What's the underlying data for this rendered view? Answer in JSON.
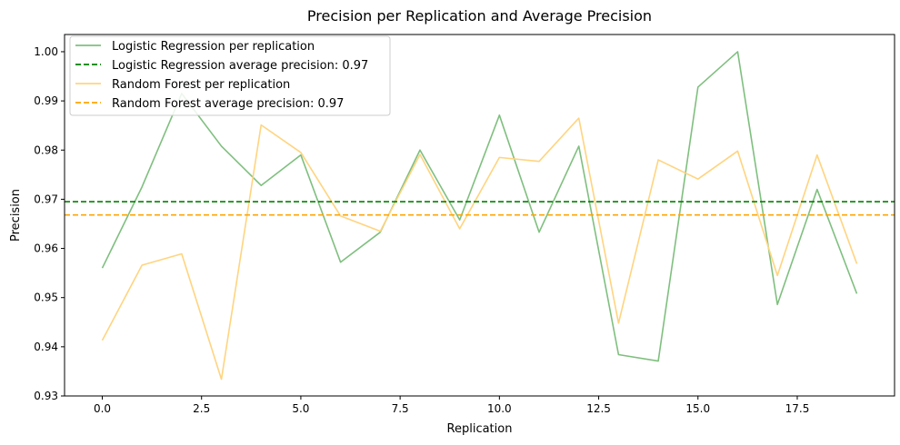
{
  "chart_data": {
    "type": "line",
    "title": "Precision per Replication and Average Precision",
    "xlabel": "Replication",
    "ylabel": "Precision",
    "xlim": [
      -0.95,
      19.95
    ],
    "ylim": [
      0.93,
      1.0035
    ],
    "xticks": [
      0.0,
      2.5,
      5.0,
      7.5,
      10.0,
      12.5,
      15.0,
      17.5
    ],
    "xtick_labels": [
      "0.0",
      "2.5",
      "5.0",
      "7.5",
      "10.0",
      "12.5",
      "15.0",
      "17.5"
    ],
    "yticks": [
      0.93,
      0.94,
      0.95,
      0.96,
      0.97,
      0.98,
      0.99,
      1.0
    ],
    "ytick_labels": [
      "0.93",
      "0.94",
      "0.95",
      "0.96",
      "0.97",
      "0.98",
      "0.99",
      "1.00"
    ],
    "grid": false,
    "legend_position": "top-left",
    "x": [
      0,
      1,
      2,
      3,
      4,
      5,
      6,
      7,
      8,
      9,
      10,
      11,
      12,
      13,
      14,
      15,
      16,
      17,
      18,
      19
    ],
    "series": [
      {
        "name": "Logistic Regression per replication",
        "color": "#7fbf7f",
        "style": "solid",
        "values": [
          0.956,
          0.9725,
          0.9915,
          0.9808,
          0.9728,
          0.979,
          0.9572,
          0.9633,
          0.98,
          0.9658,
          0.9871,
          0.9633,
          0.9808,
          0.9384,
          0.9371,
          0.9928,
          1.0,
          0.9486,
          0.972,
          0.9508
        ]
      },
      {
        "name": "Random Forest per replication",
        "color": "#ffd47f",
        "style": "solid",
        "values": [
          0.9413,
          0.9566,
          0.9589,
          0.9334,
          0.9851,
          0.9795,
          0.9666,
          0.9635,
          0.9791,
          0.964,
          0.9785,
          0.9777,
          0.9865,
          0.9448,
          0.978,
          0.9741,
          0.9798,
          0.9545,
          0.979,
          0.9569
        ]
      }
    ],
    "hlines": [
      {
        "name": "Logistic Regression average precision: 0.97",
        "value": 0.9695,
        "color": "#008000",
        "style": "dashed"
      },
      {
        "name": "Random Forest average precision: 0.97",
        "value": 0.9668,
        "color": "#ffa500",
        "style": "dashed"
      }
    ],
    "legend_order": [
      "Logistic Regression per replication",
      "Logistic Regression average precision: 0.97",
      "Random Forest per replication",
      "Random Forest average precision: 0.97"
    ]
  }
}
